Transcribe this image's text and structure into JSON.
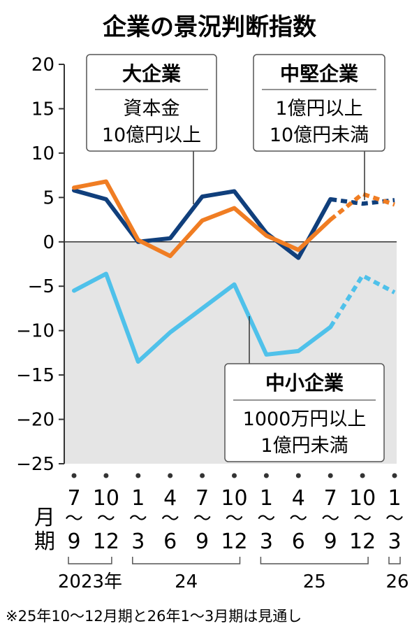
{
  "title": "企業の景況判断指数",
  "month_label": [
    "月",
    "期"
  ],
  "colors": {
    "large": "#103f7c",
    "medium": "#f07d23",
    "small": "#4fc1ea",
    "negative_band": "#e5e5e5",
    "axis": "#333333"
  },
  "boxes": [
    {
      "key": "large",
      "title": "大企業",
      "lines": [
        "資本金",
        "10億円以上"
      ]
    },
    {
      "key": "medium",
      "title": "中堅企業",
      "lines": [
        "1億円以上",
        "10億円未満"
      ]
    },
    {
      "key": "small",
      "title": "中小企業",
      "lines": [
        "1000万円以上",
        "1億円未満"
      ]
    }
  ],
  "year_groups": [
    {
      "label": "2023年",
      "from": 0,
      "to": 1
    },
    {
      "label": "24",
      "from": 2,
      "to": 5
    },
    {
      "label": "25",
      "from": 6,
      "to": 9
    },
    {
      "label": "26",
      "from": 10,
      "to": 10
    }
  ],
  "footnote": "※25年10〜12月期と26年1〜3月期は見通し",
  "chart_data": {
    "type": "line",
    "title": "企業の景況判断指数",
    "categories": [
      {
        "top": "7",
        "bottom": "9"
      },
      {
        "top": "10",
        "bottom": "12"
      },
      {
        "top": "1",
        "bottom": "3"
      },
      {
        "top": "4",
        "bottom": "6"
      },
      {
        "top": "7",
        "bottom": "9"
      },
      {
        "top": "10",
        "bottom": "12"
      },
      {
        "top": "1",
        "bottom": "3"
      },
      {
        "top": "4",
        "bottom": "6"
      },
      {
        "top": "7",
        "bottom": "9"
      },
      {
        "top": "10",
        "bottom": "12"
      },
      {
        "top": "1",
        "bottom": "3"
      }
    ],
    "range_mark": "〜",
    "ylim": [
      -25,
      20
    ],
    "yticks": [
      20,
      15,
      10,
      5,
      0,
      -5,
      -10,
      -15,
      -20,
      -25
    ],
    "ytick_labels": [
      "20",
      "15",
      "10",
      "5",
      "0",
      "−5",
      "−10",
      "−15",
      "−20",
      "−25"
    ],
    "forecast_from_index": 8,
    "series": [
      {
        "name": "大企業",
        "key": "large",
        "values": [
          5.8,
          4.8,
          0.0,
          0.4,
          5.1,
          5.7,
          1.0,
          -1.8,
          4.8,
          4.3,
          4.7
        ]
      },
      {
        "name": "中堅企業",
        "key": "medium",
        "values": [
          6.1,
          6.8,
          0.2,
          -1.6,
          2.4,
          3.8,
          0.7,
          -0.9,
          2.5,
          5.4,
          4.2
        ]
      },
      {
        "name": "中小企業",
        "key": "small",
        "values": [
          -5.5,
          -3.6,
          -13.5,
          -10.2,
          -7.5,
          -4.8,
          -12.7,
          -12.3,
          -9.6,
          -3.8,
          -5.7
        ]
      }
    ]
  }
}
